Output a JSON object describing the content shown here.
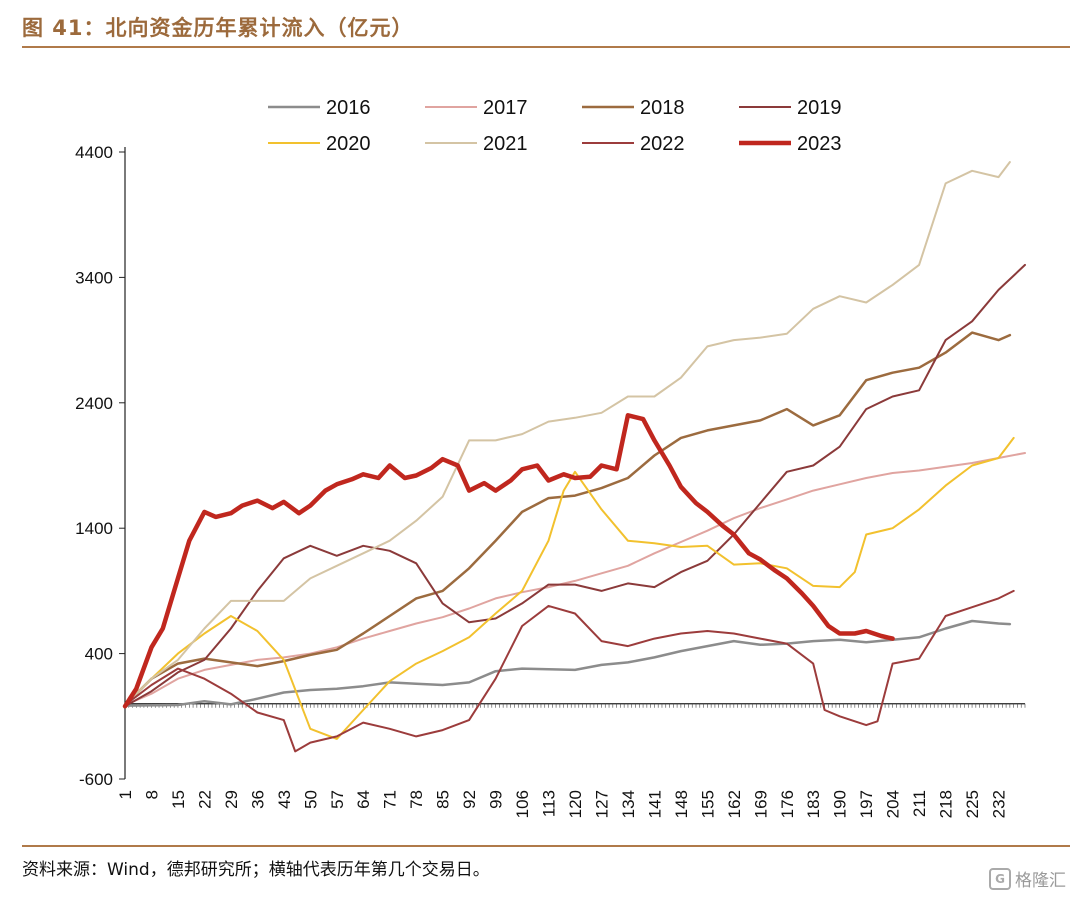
{
  "figure": {
    "title": "图 41：北向资金历年累计流入（亿元）",
    "source": "资料来源：Wind，德邦研究所；横轴代表历年第几个交易日。",
    "watermark": "格隆汇",
    "watermark_badge": "G"
  },
  "chart_data": {
    "type": "line",
    "title": "",
    "xlabel": "",
    "ylabel": "",
    "ylim": [
      -600,
      4400
    ],
    "yticks": [
      -600,
      400,
      1400,
      2400,
      3400,
      4400
    ],
    "xlim": [
      1,
      239
    ],
    "xticks": [
      1,
      8,
      15,
      22,
      29,
      36,
      43,
      50,
      57,
      64,
      71,
      78,
      85,
      92,
      99,
      106,
      113,
      120,
      127,
      134,
      141,
      148,
      155,
      162,
      169,
      176,
      183,
      190,
      197,
      204,
      211,
      218,
      225,
      232
    ],
    "grid": false,
    "legend_position": "top",
    "series": [
      {
        "name": "2016",
        "color": "#8c8c8c",
        "width": 2.5,
        "points": [
          [
            1,
            -15
          ],
          [
            15,
            -10
          ],
          [
            22,
            20
          ],
          [
            29,
            -5
          ],
          [
            36,
            40
          ],
          [
            43,
            90
          ],
          [
            50,
            110
          ],
          [
            57,
            120
          ],
          [
            64,
            140
          ],
          [
            71,
            170
          ],
          [
            78,
            160
          ],
          [
            85,
            150
          ],
          [
            92,
            170
          ],
          [
            99,
            260
          ],
          [
            106,
            280
          ],
          [
            113,
            275
          ],
          [
            120,
            270
          ],
          [
            127,
            310
          ],
          [
            134,
            330
          ],
          [
            141,
            370
          ],
          [
            148,
            420
          ],
          [
            155,
            460
          ],
          [
            162,
            500
          ],
          [
            169,
            470
          ],
          [
            176,
            480
          ],
          [
            183,
            500
          ],
          [
            190,
            510
          ],
          [
            197,
            490
          ],
          [
            204,
            510
          ],
          [
            211,
            530
          ],
          [
            218,
            600
          ],
          [
            225,
            660
          ],
          [
            232,
            640
          ],
          [
            235,
            635
          ]
        ]
      },
      {
        "name": "2017",
        "color": "#e0a4a0",
        "width": 2,
        "points": [
          [
            1,
            -10
          ],
          [
            8,
            80
          ],
          [
            15,
            200
          ],
          [
            22,
            270
          ],
          [
            29,
            310
          ],
          [
            36,
            350
          ],
          [
            43,
            370
          ],
          [
            50,
            400
          ],
          [
            57,
            450
          ],
          [
            64,
            520
          ],
          [
            71,
            580
          ],
          [
            78,
            640
          ],
          [
            85,
            690
          ],
          [
            92,
            760
          ],
          [
            99,
            840
          ],
          [
            106,
            890
          ],
          [
            113,
            930
          ],
          [
            120,
            980
          ],
          [
            127,
            1040
          ],
          [
            134,
            1100
          ],
          [
            141,
            1200
          ],
          [
            148,
            1290
          ],
          [
            155,
            1380
          ],
          [
            162,
            1480
          ],
          [
            169,
            1560
          ],
          [
            176,
            1630
          ],
          [
            183,
            1700
          ],
          [
            190,
            1750
          ],
          [
            197,
            1800
          ],
          [
            204,
            1840
          ],
          [
            211,
            1860
          ],
          [
            218,
            1890
          ],
          [
            225,
            1920
          ],
          [
            232,
            1960
          ],
          [
            239,
            2000
          ]
        ]
      },
      {
        "name": "2018",
        "color": "#9c6b3f",
        "width": 2.5,
        "points": [
          [
            1,
            -10
          ],
          [
            8,
            200
          ],
          [
            15,
            320
          ],
          [
            22,
            360
          ],
          [
            29,
            330
          ],
          [
            36,
            300
          ],
          [
            43,
            340
          ],
          [
            50,
            390
          ],
          [
            57,
            430
          ],
          [
            64,
            560
          ],
          [
            71,
            700
          ],
          [
            78,
            840
          ],
          [
            85,
            900
          ],
          [
            92,
            1080
          ],
          [
            99,
            1300
          ],
          [
            106,
            1530
          ],
          [
            113,
            1640
          ],
          [
            120,
            1660
          ],
          [
            127,
            1720
          ],
          [
            134,
            1800
          ],
          [
            141,
            1980
          ],
          [
            148,
            2120
          ],
          [
            155,
            2180
          ],
          [
            162,
            2220
          ],
          [
            169,
            2260
          ],
          [
            176,
            2350
          ],
          [
            183,
            2220
          ],
          [
            190,
            2300
          ],
          [
            197,
            2580
          ],
          [
            204,
            2640
          ],
          [
            211,
            2680
          ],
          [
            218,
            2800
          ],
          [
            225,
            2960
          ],
          [
            232,
            2900
          ],
          [
            235,
            2940
          ]
        ]
      },
      {
        "name": "2019",
        "color": "#8b3a3a",
        "width": 2,
        "points": [
          [
            1,
            -20
          ],
          [
            8,
            100
          ],
          [
            15,
            250
          ],
          [
            22,
            350
          ],
          [
            29,
            600
          ],
          [
            36,
            900
          ],
          [
            43,
            1160
          ],
          [
            50,
            1260
          ],
          [
            57,
            1180
          ],
          [
            64,
            1260
          ],
          [
            71,
            1220
          ],
          [
            78,
            1120
          ],
          [
            85,
            800
          ],
          [
            92,
            650
          ],
          [
            99,
            680
          ],
          [
            106,
            800
          ],
          [
            113,
            950
          ],
          [
            120,
            950
          ],
          [
            127,
            900
          ],
          [
            134,
            960
          ],
          [
            141,
            930
          ],
          [
            148,
            1050
          ],
          [
            155,
            1140
          ],
          [
            162,
            1350
          ],
          [
            169,
            1600
          ],
          [
            176,
            1850
          ],
          [
            183,
            1900
          ],
          [
            190,
            2050
          ],
          [
            197,
            2350
          ],
          [
            204,
            2450
          ],
          [
            211,
            2500
          ],
          [
            218,
            2900
          ],
          [
            225,
            3050
          ],
          [
            232,
            3300
          ],
          [
            239,
            3500
          ]
        ]
      },
      {
        "name": "2020",
        "color": "#f2c12e",
        "width": 2,
        "points": [
          [
            1,
            -10
          ],
          [
            8,
            200
          ],
          [
            15,
            400
          ],
          [
            22,
            560
          ],
          [
            29,
            700
          ],
          [
            36,
            580
          ],
          [
            43,
            350
          ],
          [
            50,
            -200
          ],
          [
            57,
            -280
          ],
          [
            64,
            -50
          ],
          [
            71,
            180
          ],
          [
            78,
            320
          ],
          [
            85,
            420
          ],
          [
            92,
            530
          ],
          [
            99,
            720
          ],
          [
            106,
            900
          ],
          [
            113,
            1300
          ],
          [
            117,
            1700
          ],
          [
            120,
            1850
          ],
          [
            127,
            1550
          ],
          [
            134,
            1300
          ],
          [
            141,
            1280
          ],
          [
            148,
            1250
          ],
          [
            155,
            1260
          ],
          [
            162,
            1110
          ],
          [
            169,
            1120
          ],
          [
            176,
            1080
          ],
          [
            183,
            940
          ],
          [
            190,
            930
          ],
          [
            194,
            1050
          ],
          [
            197,
            1350
          ],
          [
            204,
            1400
          ],
          [
            211,
            1550
          ],
          [
            218,
            1740
          ],
          [
            225,
            1900
          ],
          [
            232,
            1960
          ],
          [
            236,
            2120
          ]
        ]
      },
      {
        "name": "2021",
        "color": "#d4c4a4",
        "width": 2,
        "points": [
          [
            1,
            -10
          ],
          [
            8,
            200
          ],
          [
            15,
            350
          ],
          [
            22,
            600
          ],
          [
            29,
            820
          ],
          [
            36,
            820
          ],
          [
            43,
            820
          ],
          [
            50,
            1000
          ],
          [
            57,
            1100
          ],
          [
            64,
            1200
          ],
          [
            71,
            1300
          ],
          [
            78,
            1460
          ],
          [
            85,
            1650
          ],
          [
            92,
            2100
          ],
          [
            99,
            2100
          ],
          [
            106,
            2150
          ],
          [
            113,
            2250
          ],
          [
            120,
            2280
          ],
          [
            127,
            2320
          ],
          [
            134,
            2450
          ],
          [
            141,
            2450
          ],
          [
            148,
            2600
          ],
          [
            155,
            2850
          ],
          [
            162,
            2900
          ],
          [
            169,
            2920
          ],
          [
            176,
            2950
          ],
          [
            183,
            3150
          ],
          [
            190,
            3250
          ],
          [
            197,
            3200
          ],
          [
            204,
            3340
          ],
          [
            211,
            3500
          ],
          [
            218,
            4150
          ],
          [
            225,
            4250
          ],
          [
            232,
            4200
          ],
          [
            235,
            4320
          ]
        ]
      },
      {
        "name": "2022",
        "color": "#9c3c3c",
        "width": 2,
        "points": [
          [
            1,
            -10
          ],
          [
            8,
            150
          ],
          [
            15,
            280
          ],
          [
            22,
            200
          ],
          [
            29,
            80
          ],
          [
            36,
            -70
          ],
          [
            43,
            -130
          ],
          [
            46,
            -380
          ],
          [
            50,
            -310
          ],
          [
            57,
            -260
          ],
          [
            64,
            -150
          ],
          [
            71,
            -200
          ],
          [
            78,
            -260
          ],
          [
            85,
            -210
          ],
          [
            92,
            -130
          ],
          [
            99,
            200
          ],
          [
            106,
            620
          ],
          [
            113,
            780
          ],
          [
            120,
            720
          ],
          [
            127,
            500
          ],
          [
            134,
            460
          ],
          [
            141,
            520
          ],
          [
            148,
            560
          ],
          [
            155,
            580
          ],
          [
            162,
            560
          ],
          [
            169,
            520
          ],
          [
            176,
            480
          ],
          [
            183,
            320
          ],
          [
            186,
            -50
          ],
          [
            190,
            -100
          ],
          [
            197,
            -170
          ],
          [
            200,
            -140
          ],
          [
            204,
            320
          ],
          [
            211,
            360
          ],
          [
            218,
            700
          ],
          [
            225,
            770
          ],
          [
            232,
            840
          ],
          [
            236,
            900
          ]
        ]
      },
      {
        "name": "2023",
        "color": "#c0271e",
        "width": 4.5,
        "points": [
          [
            1,
            -20
          ],
          [
            4,
            120
          ],
          [
            8,
            450
          ],
          [
            11,
            600
          ],
          [
            15,
            1000
          ],
          [
            18,
            1300
          ],
          [
            22,
            1530
          ],
          [
            25,
            1490
          ],
          [
            29,
            1520
          ],
          [
            32,
            1580
          ],
          [
            36,
            1620
          ],
          [
            40,
            1560
          ],
          [
            43,
            1610
          ],
          [
            47,
            1520
          ],
          [
            50,
            1580
          ],
          [
            54,
            1700
          ],
          [
            57,
            1750
          ],
          [
            61,
            1790
          ],
          [
            64,
            1830
          ],
          [
            68,
            1800
          ],
          [
            71,
            1900
          ],
          [
            75,
            1800
          ],
          [
            78,
            1820
          ],
          [
            82,
            1880
          ],
          [
            85,
            1950
          ],
          [
            89,
            1900
          ],
          [
            92,
            1700
          ],
          [
            96,
            1760
          ],
          [
            99,
            1700
          ],
          [
            103,
            1780
          ],
          [
            106,
            1870
          ],
          [
            110,
            1900
          ],
          [
            113,
            1780
          ],
          [
            117,
            1830
          ],
          [
            120,
            1800
          ],
          [
            124,
            1810
          ],
          [
            127,
            1900
          ],
          [
            131,
            1870
          ],
          [
            134,
            2300
          ],
          [
            138,
            2270
          ],
          [
            141,
            2100
          ],
          [
            145,
            1900
          ],
          [
            148,
            1730
          ],
          [
            152,
            1600
          ],
          [
            155,
            1530
          ],
          [
            159,
            1420
          ],
          [
            162,
            1350
          ],
          [
            166,
            1200
          ],
          [
            169,
            1150
          ],
          [
            173,
            1060
          ],
          [
            176,
            1000
          ],
          [
            180,
            880
          ],
          [
            183,
            780
          ],
          [
            187,
            620
          ],
          [
            190,
            560
          ],
          [
            194,
            560
          ],
          [
            197,
            580
          ],
          [
            201,
            540
          ],
          [
            204,
            520
          ]
        ]
      }
    ]
  }
}
